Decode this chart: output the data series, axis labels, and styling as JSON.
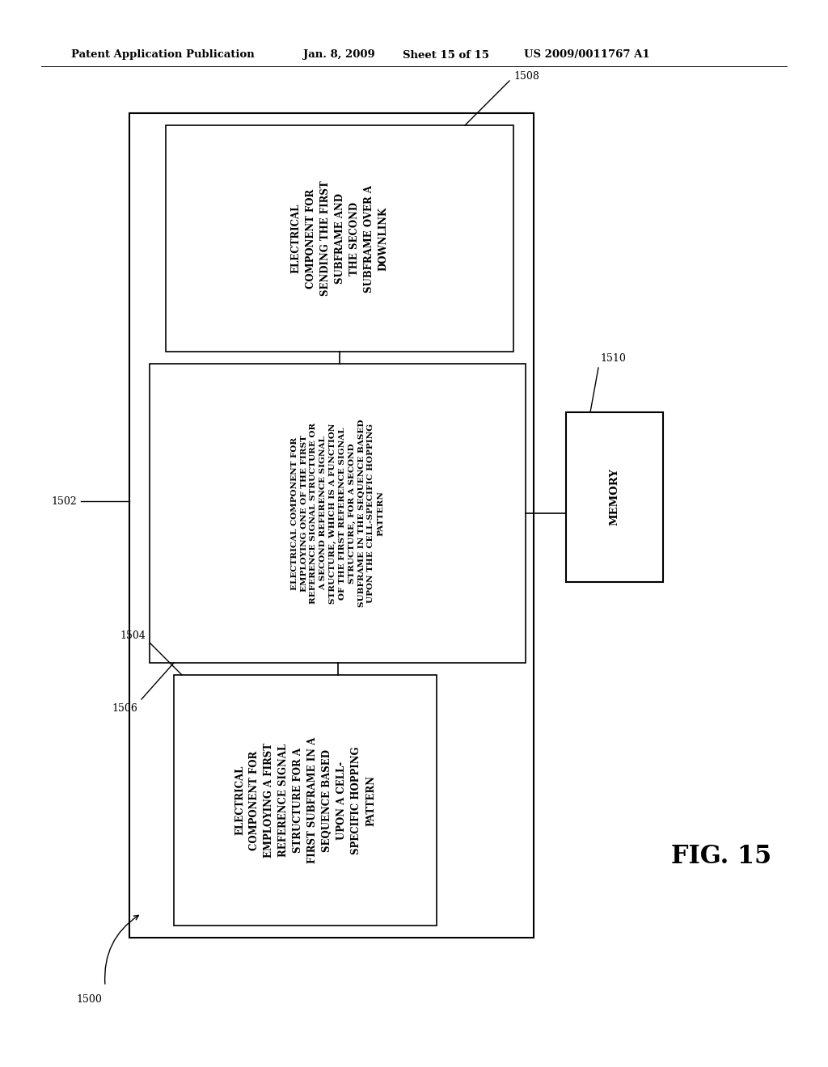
{
  "bg_color": "#ffffff",
  "header_text1": "Patent Application Publication",
  "header_text2": "Jan. 8, 2009",
  "header_text3": "Sheet 15 of 15",
  "header_text4": "US 2009/0011767 A1",
  "fig_label": "FIG. 15",
  "box1508_text": "ELECTRICAL\nCOMPONENT FOR\nSENDING THE FIRST\nSUBFRAME AND\nTHE SECOND\nSUBFRAME OVER A\nDOWNLINK",
  "box1506_text": "ELECTRICAL COMPONENT FOR\nEMPLOYING ONE OF THE FIRST\nREFERENCE SIGNAL STRUCTURE OR\nA SECOND REFERENCE SIGNAL\nSTRUCTURE, WHICH IS A FUNCTION\nOF THE FIRST REFERENCE SIGNAL\nSTRUCTURE, FOR A SECOND\nSUBFRAME IN THE SEQUENCE BASED\nUPON THE CELL-SPECIFIC HOPPING\nPATTERN",
  "box1504_text": "ELECTRICAL\nCOMPONENT FOR\nEMPLOYING A FIRST\nREFERENCE SIGNAL\nSTRUCTURE FOR A\nFIRST SUBFRAME IN A\nSEQUENCE BASED\nUPON A CELL-\nSPECIFIC HOPPING\nPATTERN",
  "memory_text": "MEMORY"
}
